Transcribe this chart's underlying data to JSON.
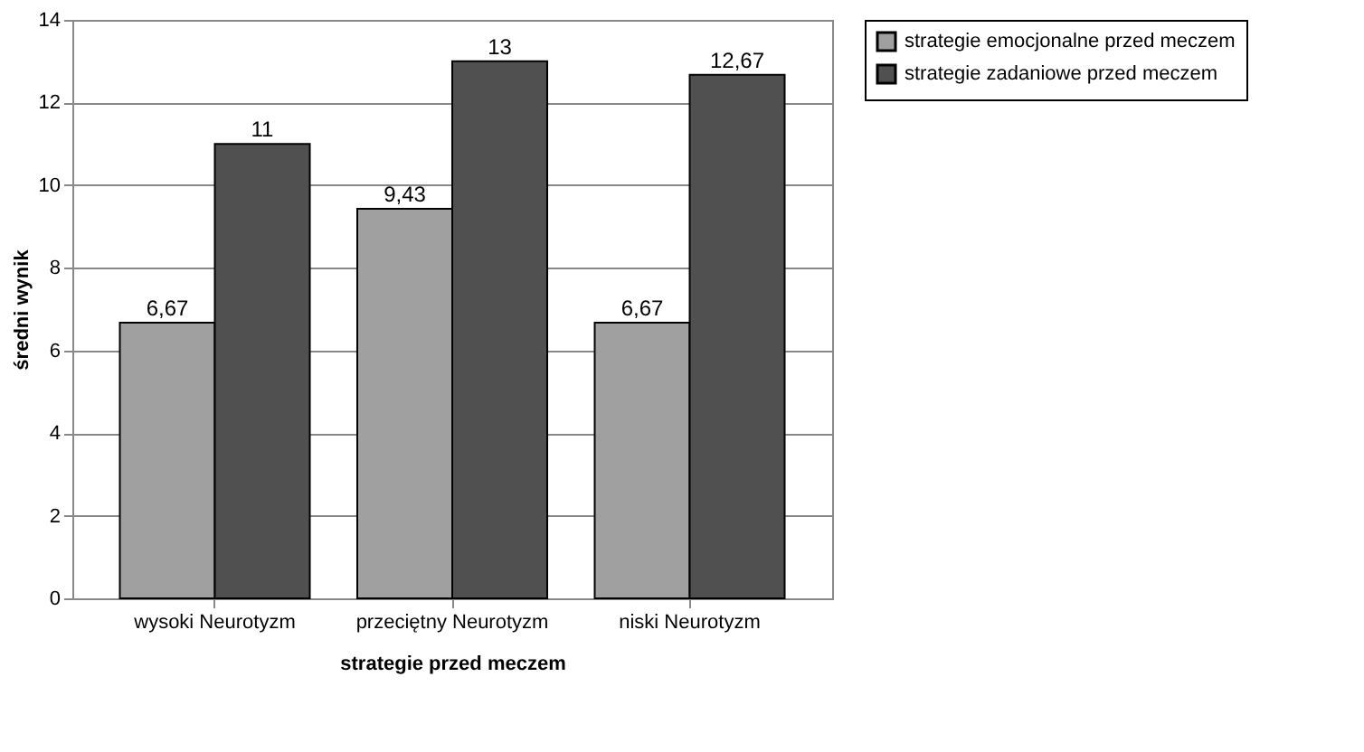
{
  "chart_data": {
    "type": "bar",
    "xlabel": "strategie przed meczem",
    "ylabel": "średni wynik",
    "categories": [
      "wysoki Neurotyzm",
      "przeciętny Neurotyzm",
      "niski Neurotyzm"
    ],
    "series": [
      {
        "name": "strategie emocjonalne przed meczem",
        "color": "#a0a0a0",
        "values": [
          6.67,
          9.43,
          6.67
        ],
        "value_labels": [
          "6,67",
          "9,43",
          "6,67"
        ]
      },
      {
        "name": "strategie zadaniowe przed meczem",
        "color": "#505050",
        "values": [
          11,
          13,
          12.67
        ],
        "value_labels": [
          "11",
          "13",
          "12,67"
        ]
      }
    ],
    "ylim": [
      0,
      14
    ],
    "yticks": [
      0,
      2,
      4,
      6,
      8,
      10,
      12,
      14
    ],
    "grid": "y",
    "legend": "right"
  }
}
